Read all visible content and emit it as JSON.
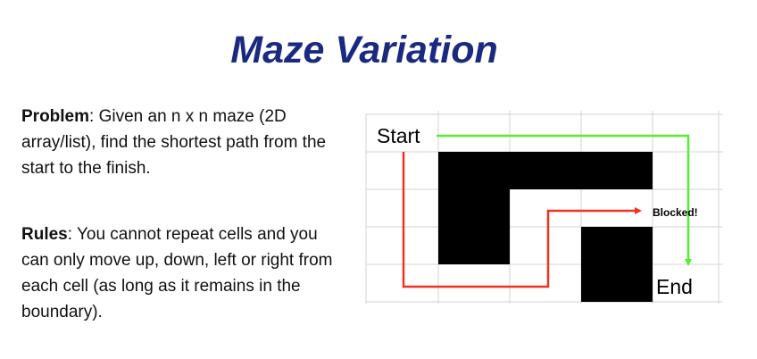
{
  "slide": {
    "title": "Maze Variation"
  },
  "problem": {
    "label": "Problem",
    "text": ": Given an n x n maze (2D array/list), find the shortest path from the start to the finish."
  },
  "rules": {
    "label": "Rules",
    "text": ": You cannot repeat cells and you can only move up, down, left or right from each cell (as long as it remains in the boundary)."
  },
  "maze": {
    "start_label": "Start",
    "end_label": "End",
    "blocked_label": "Blocked!",
    "colors": {
      "grid": "#d3d3d3",
      "wall": "#000000",
      "success_path": "#55ee33",
      "blocked_path": "#ee3322"
    }
  }
}
